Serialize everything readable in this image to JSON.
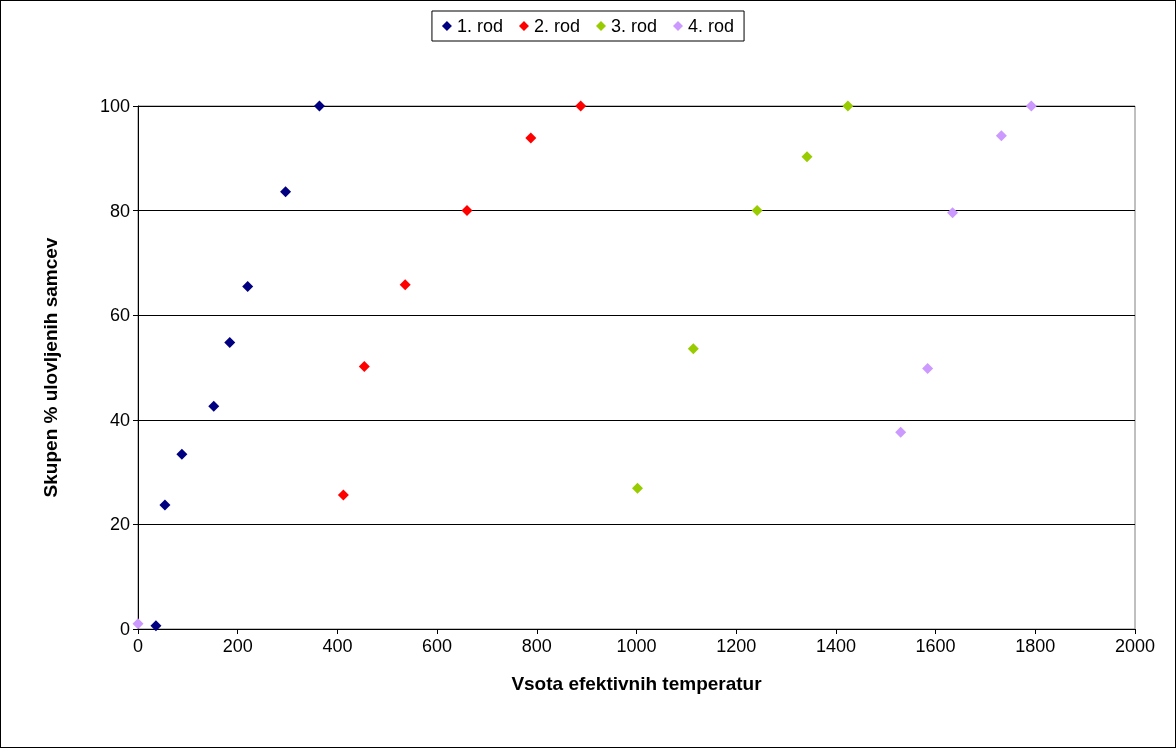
{
  "chart_data": {
    "type": "scatter",
    "xlabel": "Vsota efektivnih temperatur",
    "ylabel": "Skupen % ulovljenih samcev",
    "xlim": [
      0,
      2000
    ],
    "xticks": [
      0,
      200,
      400,
      600,
      800,
      1000,
      1200,
      1400,
      1600,
      1800,
      2000
    ],
    "ylim": [
      0,
      100
    ],
    "yticks": [
      0,
      20,
      40,
      60,
      80,
      100
    ],
    "grid": "y",
    "legend": "top",
    "marker": "diamond",
    "series": [
      {
        "name": "1. rod",
        "color": "#000080",
        "x": [
          36,
          54,
          88,
          152,
          184,
          220,
          296,
          364
        ],
        "values": [
          0.6,
          23.7,
          33.4,
          42.6,
          54.8,
          65.5,
          83.6,
          100
        ]
      },
      {
        "name": "2. rod",
        "color": "#ff0000",
        "x": [
          412,
          454,
          536,
          660,
          788,
          888
        ],
        "values": [
          25.6,
          50.2,
          65.8,
          80,
          93.9,
          100
        ]
      },
      {
        "name": "3. rod",
        "color": "#99cc00",
        "x": [
          1002,
          1114,
          1242,
          1342,
          1424
        ],
        "values": [
          26.9,
          53.6,
          80,
          90.3,
          100
        ]
      },
      {
        "name": "4. rod",
        "color": "#cc99ff",
        "x": [
          0,
          1530,
          1584,
          1634,
          1732,
          1792
        ],
        "values": [
          1,
          37.6,
          49.8,
          79.6,
          94.3,
          100
        ]
      }
    ]
  }
}
